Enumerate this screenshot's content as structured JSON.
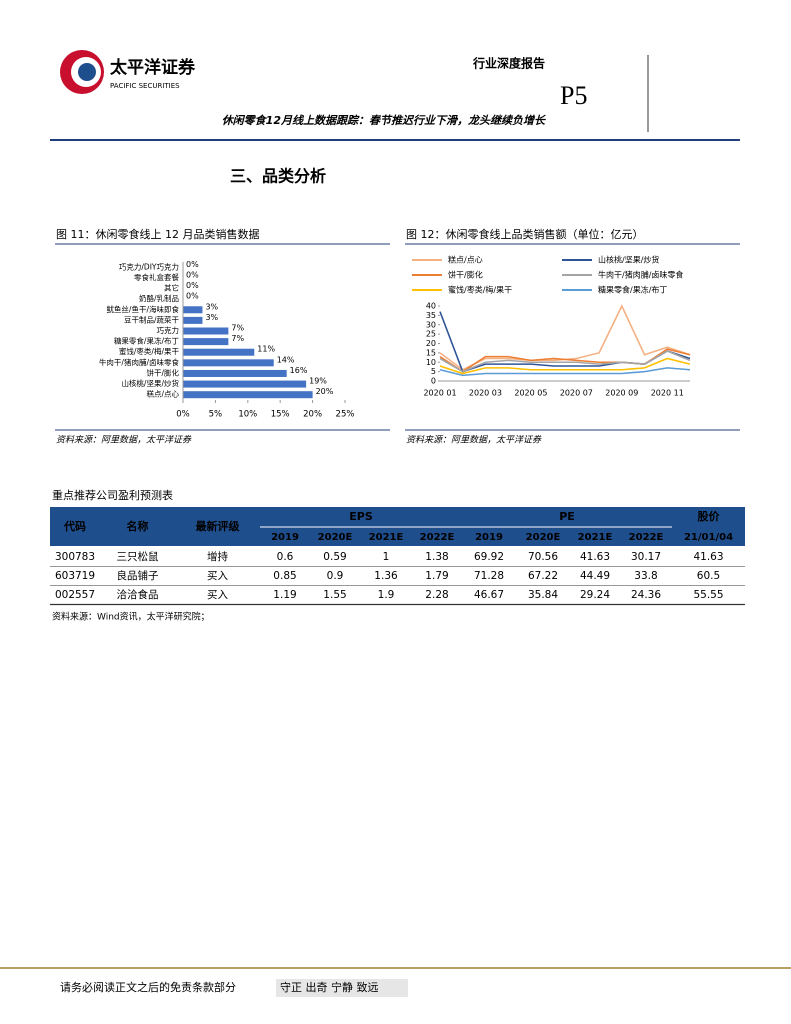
{
  "header": {
    "logo_cn": "太平洋证券",
    "logo_en": "PACIFIC SECURITIES",
    "report_type": "行业深度报告",
    "page": "P5",
    "subtitle": "休闲零食12月线上数据跟踪：春节推迟行业下滑，龙头继续负增长"
  },
  "section_title": "三、品类分析",
  "chart_data": [
    {
      "type": "bar",
      "title": "图 11：休闲零食线上 12 月品类销售数据",
      "source": "资料来源：阿里数据，太平洋证券",
      "color": "#4472c4",
      "categories": [
        "巧克力/DIY巧克力",
        "零食礼盒套餐",
        "其它",
        "奶酪/乳制品",
        "鱿鱼丝/鱼干/海味即食",
        "豆干制品/蔬菜干",
        "巧克力",
        "糖果零食/果冻/布丁",
        "蜜饯/枣类/梅/果干",
        "牛肉干/猪肉脯/卤味零食",
        "饼干/膨化",
        "山核桃/坚果/炒货",
        "糕点/点心"
      ],
      "values": [
        0,
        0,
        0,
        0,
        3,
        3,
        7,
        7,
        11,
        14,
        16,
        19,
        20
      ],
      "value_labels": [
        "0%",
        "0%",
        "0%",
        "0%",
        "3%",
        "3%",
        "7%",
        "7%",
        "11%",
        "14%",
        "16%",
        "19%",
        "20%"
      ],
      "xlim": [
        0,
        25
      ],
      "xticks": [
        {
          "value": 0,
          "label": "0%"
        },
        {
          "value": 5,
          "label": "5%"
        },
        {
          "value": 10,
          "label": "10%"
        },
        {
          "value": 15,
          "label": "15%"
        },
        {
          "value": 20,
          "label": "20%"
        },
        {
          "value": 25,
          "label": "25%"
        }
      ]
    },
    {
      "type": "line",
      "title": "图 12：休闲零食线上品类销售额（单位：亿元）",
      "source": "资料来源：阿里数据，太平洋证券",
      "categories": [
        "2020 01",
        null,
        "2020 03",
        null,
        "2020 05",
        null,
        "2020 07",
        null,
        "2020 09",
        null,
        "2020 11",
        null
      ],
      "series": [
        {
          "name": "糕点/点心",
          "color": "#f4b183",
          "values": [
            15,
            6,
            12,
            12,
            11,
            11,
            12,
            15,
            40,
            14,
            18,
            14
          ]
        },
        {
          "name": "山核桃/坚果/炒货",
          "color": "#2f5597",
          "values": [
            37,
            5,
            9,
            9,
            9,
            8,
            8,
            8,
            10,
            9,
            16,
            12
          ]
        },
        {
          "name": "饼干/膨化",
          "color": "#ed7d31",
          "values": [
            13,
            5,
            13,
            13,
            11,
            12,
            11,
            10,
            10,
            9,
            17,
            14
          ]
        },
        {
          "name": "牛肉干/猪肉脯/卤味零食",
          "color": "#a5a5a5",
          "values": [
            12,
            5,
            10,
            11,
            10,
            10,
            10,
            9,
            10,
            9,
            16,
            11
          ]
        },
        {
          "name": "蜜饯/枣类/梅/果干",
          "color": "#ffc000",
          "values": [
            8,
            4,
            7,
            7,
            6,
            6,
            6,
            6,
            6,
            7,
            12,
            9
          ]
        },
        {
          "name": "糖果零食/果冻/布丁",
          "color": "#5b9bd5",
          "values": [
            6,
            3,
            4,
            4,
            4,
            4,
            4,
            4,
            4,
            5,
            7,
            6
          ]
        }
      ],
      "ylim": [
        0,
        40
      ],
      "yticks": [
        0,
        5,
        10,
        15,
        20,
        25,
        30,
        35,
        40
      ]
    }
  ],
  "table": {
    "title": "重点推荐公司盈利预测表",
    "header_top": [
      "代码",
      "名称",
      "最新评级",
      "EPS",
      "PE",
      "股价"
    ],
    "header_sub": [
      "2019",
      "2020E",
      "2021E",
      "2022E",
      "2019",
      "2020E",
      "2021E",
      "2022E",
      "21/01/04"
    ],
    "rows": [
      [
        "300783",
        "三只松鼠",
        "增持",
        0.6,
        0.59,
        1,
        1.38,
        69.92,
        70.56,
        41.63,
        30.17,
        41.63
      ],
      [
        "603719",
        "良品铺子",
        "买入",
        0.85,
        0.9,
        1.36,
        1.79,
        71.28,
        67.22,
        44.49,
        33.8,
        60.5
      ],
      [
        "002557",
        "洽洽食品",
        "买入",
        1.19,
        1.55,
        1.9,
        2.28,
        46.67,
        35.84,
        29.24,
        24.36,
        55.55
      ]
    ],
    "note": "资料来源：Wind资讯，太平洋研究院；"
  },
  "footer": {
    "disclaimer": "请务必阅读正文之后的免责条款部分",
    "motto": "守正 出奇 宁静 致远"
  }
}
